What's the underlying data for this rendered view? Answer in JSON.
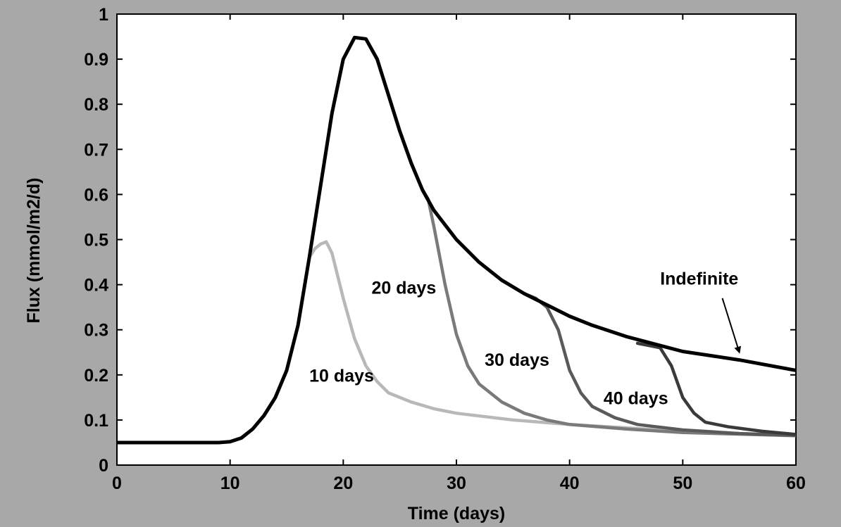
{
  "chart_data": {
    "type": "line",
    "title": "",
    "xlabel": "Time (days)",
    "ylabel": "Flux (mmol/m2/d)",
    "xlim": [
      0,
      60
    ],
    "ylim": [
      0,
      1
    ],
    "xticks": [
      0,
      10,
      20,
      30,
      40,
      50,
      60
    ],
    "yticks": [
      0,
      0.1,
      0.2,
      0.3,
      0.4,
      0.5,
      0.6,
      0.7,
      0.8,
      0.9,
      1
    ],
    "ytick_labels": [
      "0",
      "0.1",
      "0.2",
      "0.3",
      "0.4",
      "0.5",
      "0.6",
      "0.7",
      "0.8",
      "0.9",
      "1"
    ],
    "grid": false,
    "legend": "none",
    "series": [
      {
        "color": "#000000",
        "points": [
          [
            0,
            0.05
          ],
          [
            6,
            0.05
          ],
          [
            9,
            0.05
          ],
          [
            10,
            0.052
          ],
          [
            11,
            0.06
          ],
          [
            12,
            0.08
          ],
          [
            13,
            0.11
          ],
          [
            14,
            0.15
          ],
          [
            15,
            0.21
          ],
          [
            16,
            0.31
          ],
          [
            17,
            0.46
          ],
          [
            18,
            0.62
          ],
          [
            19,
            0.78
          ],
          [
            20,
            0.9
          ],
          [
            21,
            0.948
          ],
          [
            22,
            0.945
          ],
          [
            23,
            0.9
          ],
          [
            24,
            0.82
          ],
          [
            25,
            0.74
          ],
          [
            26,
            0.67
          ],
          [
            27,
            0.61
          ],
          [
            28,
            0.565
          ],
          [
            30,
            0.5
          ],
          [
            32,
            0.45
          ],
          [
            34,
            0.41
          ],
          [
            36,
            0.38
          ],
          [
            38,
            0.355
          ],
          [
            40,
            0.33
          ],
          [
            42,
            0.31
          ],
          [
            45,
            0.285
          ],
          [
            48,
            0.265
          ],
          [
            50,
            0.252
          ],
          [
            55,
            0.233
          ],
          [
            60,
            0.21
          ]
        ]
      },
      {
        "color": "#b8b8b8",
        "points": [
          [
            17,
            0.46
          ],
          [
            17.5,
            0.48
          ],
          [
            18,
            0.49
          ],
          [
            18.5,
            0.495
          ],
          [
            19,
            0.47
          ],
          [
            20,
            0.37
          ],
          [
            21,
            0.28
          ],
          [
            22,
            0.22
          ],
          [
            23,
            0.185
          ],
          [
            24,
            0.16
          ],
          [
            26,
            0.14
          ],
          [
            28,
            0.125
          ],
          [
            30,
            0.115
          ],
          [
            35,
            0.1
          ],
          [
            40,
            0.09
          ],
          [
            50,
            0.075
          ],
          [
            60,
            0.065
          ]
        ]
      },
      {
        "color": "#7a7a7a",
        "points": [
          [
            27,
            0.61
          ],
          [
            27.5,
            0.59
          ],
          [
            28,
            0.53
          ],
          [
            29,
            0.4
          ],
          [
            30,
            0.29
          ],
          [
            31,
            0.22
          ],
          [
            32,
            0.18
          ],
          [
            34,
            0.14
          ],
          [
            36,
            0.115
          ],
          [
            38,
            0.1
          ],
          [
            40,
            0.09
          ],
          [
            45,
            0.08
          ],
          [
            50,
            0.072
          ],
          [
            60,
            0.065
          ]
        ]
      },
      {
        "color": "#5a5a5a",
        "points": [
          [
            36,
            0.38
          ],
          [
            37,
            0.37
          ],
          [
            37.5,
            0.36
          ],
          [
            38,
            0.35
          ],
          [
            39,
            0.3
          ],
          [
            40,
            0.21
          ],
          [
            41,
            0.16
          ],
          [
            42,
            0.13
          ],
          [
            44,
            0.105
          ],
          [
            46,
            0.09
          ],
          [
            50,
            0.078
          ],
          [
            55,
            0.07
          ],
          [
            60,
            0.066
          ]
        ]
      },
      {
        "color": "#3a3a3a",
        "points": [
          [
            46,
            0.27
          ],
          [
            47,
            0.265
          ],
          [
            48,
            0.26
          ],
          [
            49,
            0.22
          ],
          [
            50,
            0.15
          ],
          [
            51,
            0.115
          ],
          [
            52,
            0.095
          ],
          [
            54,
            0.085
          ],
          [
            57,
            0.075
          ],
          [
            60,
            0.068
          ]
        ]
      }
    ],
    "annotations": [
      {
        "text": "10 days",
        "x": 17,
        "y": 0.185
      },
      {
        "text": "20 days",
        "x": 22.5,
        "y": 0.38
      },
      {
        "text": "30 days",
        "x": 32.5,
        "y": 0.22
      },
      {
        "text": "40 days",
        "x": 43,
        "y": 0.135
      },
      {
        "text": "Indefinite",
        "x": 48,
        "y": 0.4
      }
    ],
    "arrow": {
      "from": [
        53.5,
        0.37
      ],
      "to": [
        55,
        0.25
      ]
    }
  }
}
